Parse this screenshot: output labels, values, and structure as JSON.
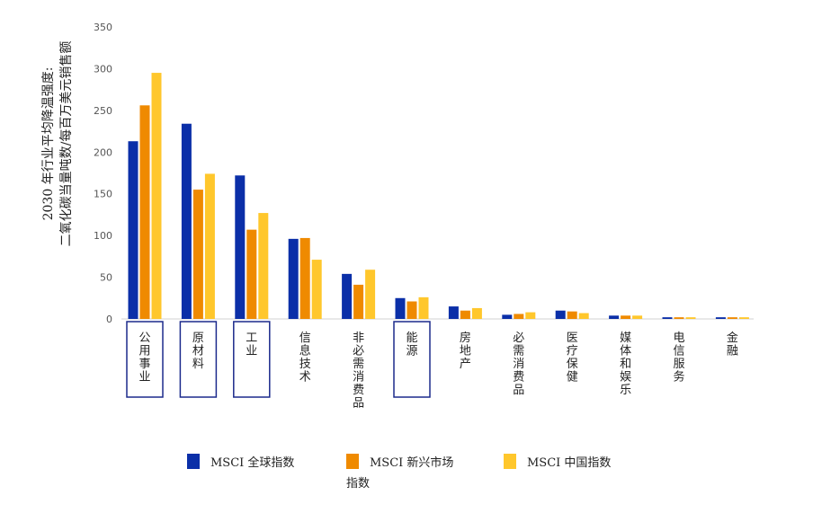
{
  "chart_data": {
    "type": "bar",
    "ylabel_lines": [
      "2030 年行业平均降温强度:",
      "二氧化碳当量吨数/每百万美元销售额"
    ],
    "ylim": [
      0,
      350
    ],
    "yticks": [
      0,
      50,
      100,
      150,
      200,
      250,
      300,
      350
    ],
    "grid": false,
    "legend_position": "bottom",
    "categories": [
      "公用事业",
      "原材料",
      "工业",
      "信息技术",
      "非必需消费品",
      "能源",
      "房地产",
      "必需消费品",
      "医疗保健",
      "媒体和娱乐",
      "电信服务",
      "金融"
    ],
    "highlighted_categories": [
      "公用事业",
      "原材料",
      "工业",
      "能源"
    ],
    "series": [
      {
        "name": "MSCI 全球指数",
        "color": "#0b2fa8",
        "values": [
          213,
          234,
          172,
          96,
          54,
          25,
          15,
          5,
          10,
          4,
          2,
          2
        ]
      },
      {
        "name": "MSCI 新兴市场指数",
        "color": "#ef8a00",
        "values": [
          256,
          155,
          107,
          97,
          41,
          21,
          10,
          6,
          9,
          4,
          2,
          2
        ]
      },
      {
        "name": "MSCI 中国指数",
        "color": "#ffc72c",
        "values": [
          295,
          174,
          127,
          71,
          59,
          26,
          13,
          8,
          7,
          4,
          2,
          2
        ]
      }
    ],
    "legend": [
      {
        "color": "#0b2fa8",
        "lines": [
          "MSCI 全球指数"
        ]
      },
      {
        "color": "#ef8a00",
        "lines": [
          "MSCI 新兴市场",
          "指数"
        ]
      },
      {
        "color": "#ffc72c",
        "lines": [
          "MSCI 中国指数"
        ]
      }
    ]
  }
}
